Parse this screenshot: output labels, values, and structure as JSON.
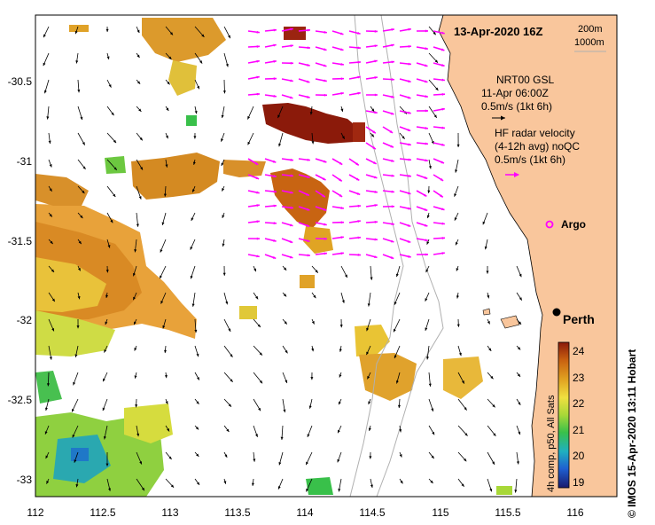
{
  "header": {
    "title": "13-Apr-2020 16Z",
    "isobath_1": "200m",
    "isobath_2": "1000m"
  },
  "legend": {
    "gsl_line1": "NRT00 GSL",
    "gsl_line2": "11-Apr 06:00Z",
    "gsl_scale": "0.5m/s (1kt 6h)",
    "hf_line1": "HF radar velocity",
    "hf_line2": "(4-12h avg) noQC",
    "hf_scale": "0.5m/s (1kt 6h)",
    "argo_label": "Argo",
    "city_label": "Perth"
  },
  "axes": {
    "x_ticks": [
      "112",
      "112.5",
      "113",
      "113.5",
      "114",
      "114.5",
      "115",
      "115.5",
      "116"
    ],
    "y_ticks": [
      "-30.5",
      "-31",
      "-31.5",
      "-32",
      "-32.5",
      "-33"
    ],
    "x_range": [
      112,
      116.3
    ],
    "y_range": [
      -30.1,
      -33.1
    ]
  },
  "colorbar": {
    "ticks": [
      "24",
      "23",
      "22",
      "21",
      "20",
      "19"
    ],
    "caption": "4h comp, p50, All Sats",
    "range": [
      19,
      24.4
    ],
    "colors": [
      "#1a1a6e",
      "#1f5fd0",
      "#1fb0c0",
      "#39c04a",
      "#a8d838",
      "#f0e040",
      "#e0a020",
      "#c86010",
      "#8b1a0a"
    ]
  },
  "credit": "© IMOS 15-Apr-2020 13:11 Hobart",
  "colors": {
    "land": "#f9c69c",
    "hf_vector": "#ff00ff",
    "gsl_vector": "#000000",
    "isobath": "#b0b0b0"
  }
}
